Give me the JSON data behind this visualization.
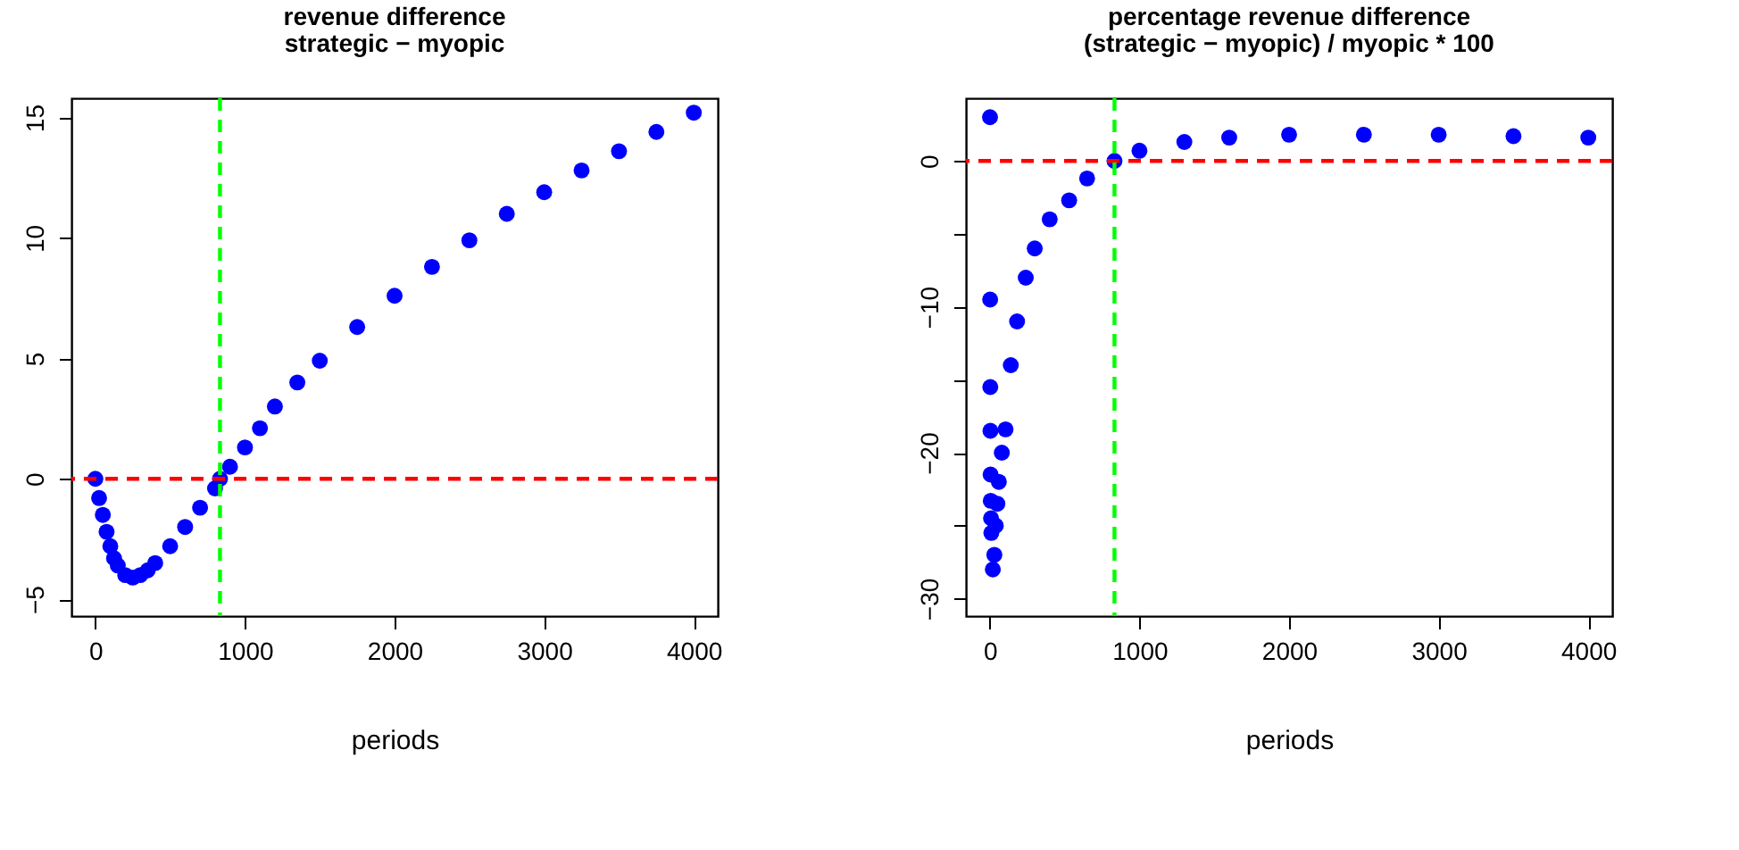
{
  "chart_data": [
    {
      "type": "scatter",
      "title": "revenue difference",
      "subtitle": "strategic − myopic",
      "xlabel": "periods",
      "marker": "circle",
      "x": [
        0,
        25,
        50,
        75,
        100,
        125,
        150,
        200,
        250,
        300,
        350,
        400,
        500,
        600,
        700,
        800,
        833,
        900,
        1000,
        1100,
        1200,
        1350,
        1500,
        1750,
        2000,
        2250,
        2500,
        2750,
        3000,
        3250,
        3500,
        3750,
        4000
      ],
      "series": [
        {
          "color": "#0000ff",
          "values": [
            0,
            -0.8,
            -1.5,
            -2.2,
            -2.8,
            -3.3,
            -3.6,
            -4.0,
            -4.1,
            -4.0,
            -3.8,
            -3.5,
            -2.8,
            -2.0,
            -1.2,
            -0.4,
            0,
            0.5,
            1.3,
            2.1,
            3.0,
            4.0,
            4.9,
            6.3,
            7.6,
            8.8,
            9.9,
            11.0,
            11.9,
            12.8,
            13.6,
            14.4,
            15.2
          ]
        }
      ],
      "xlim": [
        -160,
        4160
      ],
      "ylim": [
        -5.7,
        15.8
      ],
      "xticks": [
        0,
        1000,
        2000,
        3000,
        4000
      ],
      "yticks": [
        -5,
        0,
        5,
        10,
        15
      ],
      "ref_lines": [
        {
          "axis": "y",
          "value": 0,
          "color": "#ff0000",
          "line_style": "dashed"
        },
        {
          "axis": "x",
          "value": 833,
          "color": "#00ff00",
          "line_style": "dashed"
        }
      ]
    },
    {
      "type": "scatter",
      "title": "percentage revenue difference",
      "subtitle": "(strategic − myopic) / myopic * 100",
      "xlabel": "periods",
      "marker": "circle",
      "x": [
        1,
        2,
        3,
        4,
        5,
        6,
        8,
        10,
        20,
        30,
        40,
        50,
        60,
        80,
        105,
        140,
        182,
        240,
        300,
        400,
        530,
        650,
        833,
        1000,
        1300,
        1600,
        2000,
        2500,
        3000,
        3500,
        4000
      ],
      "series": [
        {
          "color": "#0000ff",
          "values": [
            3.0,
            -9.5,
            -15.5,
            -18.5,
            -21.5,
            -23.3,
            -24.5,
            -25.5,
            -28,
            -27,
            -25,
            -23.5,
            -22,
            -20,
            -18.4,
            -14,
            -11,
            -8,
            -6,
            -4,
            -2.7,
            -1.2,
            0,
            0.7,
            1.3,
            1.6,
            1.8,
            1.8,
            1.8,
            1.7,
            1.6
          ]
        }
      ],
      "xlim": [
        -160,
        4160
      ],
      "ylim": [
        -31.2,
        4.3
      ],
      "xticks": [
        0,
        1000,
        2000,
        3000,
        4000
      ],
      "yticks": [
        -30,
        {
          "value": -25,
          "label": null
        },
        -20,
        {
          "value": -15,
          "label": null
        },
        -10,
        {
          "value": -5,
          "label": null
        },
        0
      ],
      "ref_lines": [
        {
          "axis": "y",
          "value": 0,
          "color": "#ff0000",
          "line_style": "dashed"
        },
        {
          "axis": "x",
          "value": 833,
          "color": "#00ff00",
          "line_style": "dashed"
        }
      ]
    }
  ]
}
